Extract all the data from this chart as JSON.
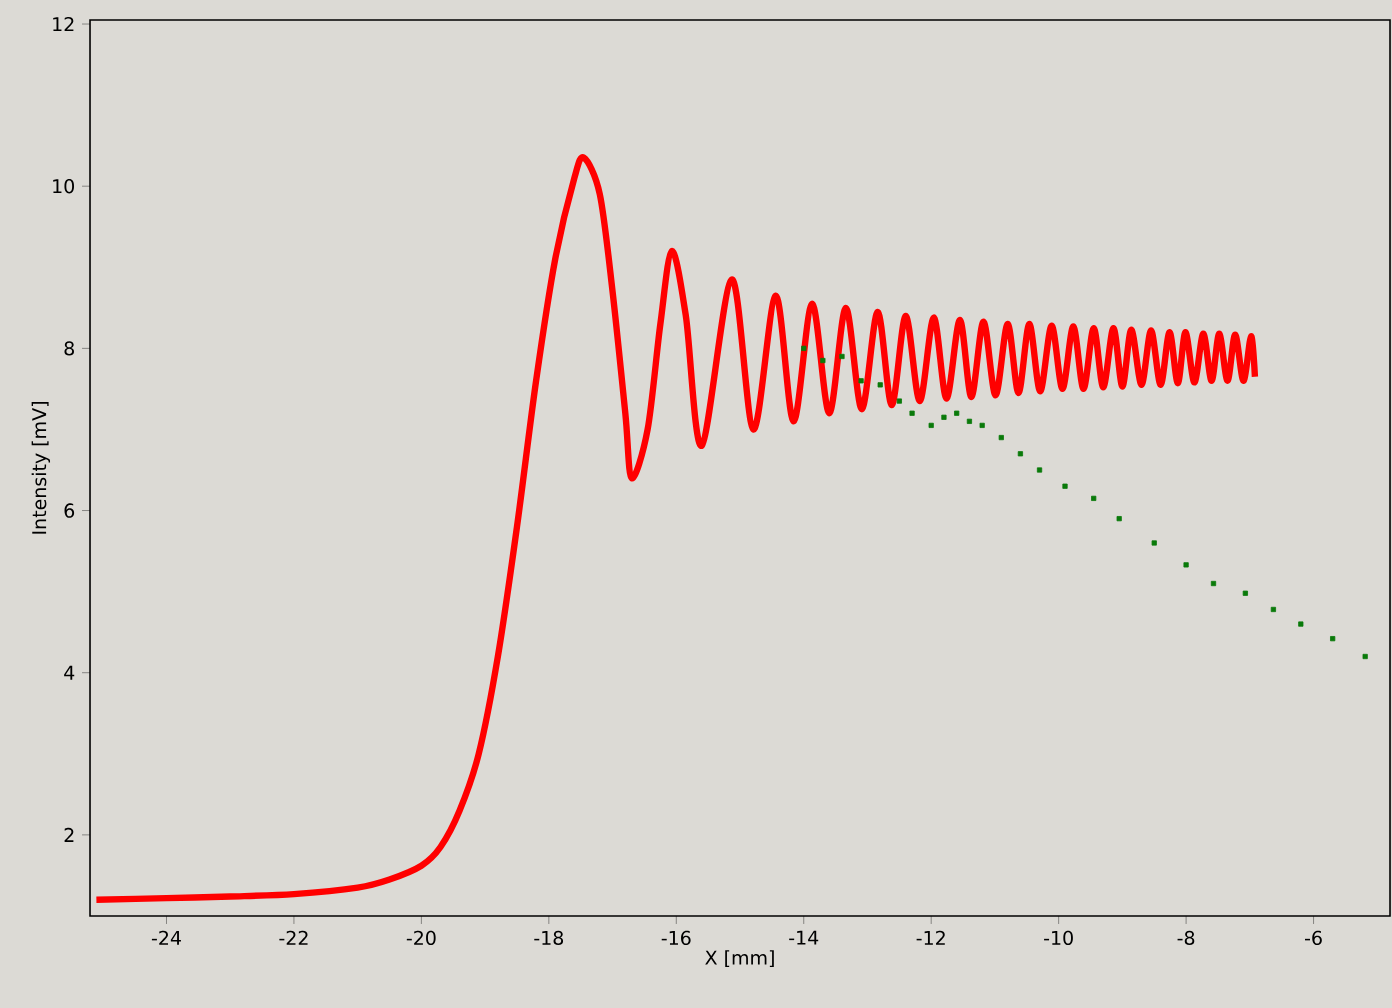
{
  "chart_data": {
    "type": "line",
    "xlabel": "X [mm]",
    "ylabel": "Intensity [mV]",
    "xlim": [
      -25.2,
      -4.8
    ],
    "ylim": [
      1.0,
      12.05
    ],
    "xticks": [
      -24,
      -22,
      -20,
      -18,
      -16,
      -14,
      -12,
      -10,
      -8,
      -6
    ],
    "yticks": [
      2,
      4,
      6,
      8,
      10,
      12
    ],
    "grid": false,
    "series": [
      {
        "type": "line",
        "color": "#ff0000",
        "line_style": "solid",
        "marker": "none",
        "x": [
          -25.1,
          -24,
          -23,
          -22,
          -21,
          -20.5,
          -20,
          -19.7,
          -19.4,
          -19.1,
          -18.8,
          -18.5,
          -18.2,
          -17.9,
          -17.6,
          -17.45,
          -17.2,
          -17.0,
          -16.8,
          -16.7,
          -16.45,
          -16.25,
          -16.07,
          -15.85,
          -15.6,
          -15.13,
          -14.79,
          -14.44,
          -14.16,
          -13.87,
          -13.6,
          -13.34,
          -13.09,
          -12.84,
          -12.62,
          -12.4,
          -12.18,
          -11.96,
          -11.76,
          -11.55,
          -11.37,
          -11.18,
          -10.99,
          -10.8,
          -10.63,
          -10.46,
          -10.29,
          -10.11,
          -9.94,
          -9.77,
          -9.61,
          -9.45,
          -9.3,
          -9.14,
          -9.0,
          -8.86,
          -8.7,
          -8.55,
          -8.4,
          -8.26,
          -8.13,
          -8.01,
          -7.87,
          -7.73,
          -7.6,
          -7.48,
          -7.35,
          -7.23,
          -7.1,
          -6.98,
          -6.92
        ],
        "values": [
          1.2,
          1.22,
          1.24,
          1.27,
          1.35,
          1.45,
          1.62,
          1.85,
          2.3,
          3.0,
          4.2,
          5.8,
          7.6,
          9.1,
          10.1,
          10.35,
          9.9,
          8.7,
          7.2,
          6.4,
          7.0,
          8.3,
          9.2,
          8.4,
          6.8,
          8.85,
          7.0,
          8.65,
          7.1,
          8.55,
          7.2,
          8.5,
          7.25,
          8.45,
          7.3,
          8.4,
          7.35,
          8.38,
          7.38,
          8.35,
          7.4,
          8.33,
          7.42,
          8.3,
          7.45,
          8.3,
          7.47,
          8.28,
          7.5,
          8.27,
          7.5,
          8.25,
          7.52,
          8.25,
          7.53,
          8.23,
          7.55,
          8.22,
          7.55,
          8.2,
          7.57,
          8.2,
          7.58,
          8.18,
          7.6,
          8.18,
          7.6,
          8.17,
          7.6,
          8.15,
          7.65
        ]
      },
      {
        "type": "scatter",
        "color": "#0a7a0a",
        "marker": "square",
        "x": [
          -14.0,
          -13.7,
          -13.4,
          -13.1,
          -12.8,
          -12.5,
          -12.3,
          -12.0,
          -11.8,
          -11.6,
          -11.4,
          -11.2,
          -10.9,
          -10.6,
          -10.3,
          -9.9,
          -9.45,
          -9.05,
          -8.5,
          -8.0,
          -7.57,
          -7.07,
          -6.63,
          -6.2,
          -5.7,
          -5.19
        ],
        "values": [
          8.0,
          7.85,
          7.9,
          7.6,
          7.55,
          7.35,
          7.2,
          7.05,
          7.15,
          7.2,
          7.1,
          7.05,
          6.9,
          6.7,
          6.5,
          6.3,
          6.15,
          5.9,
          5.6,
          5.33,
          5.1,
          4.98,
          4.78,
          4.6,
          4.42,
          4.2
        ]
      }
    ]
  }
}
